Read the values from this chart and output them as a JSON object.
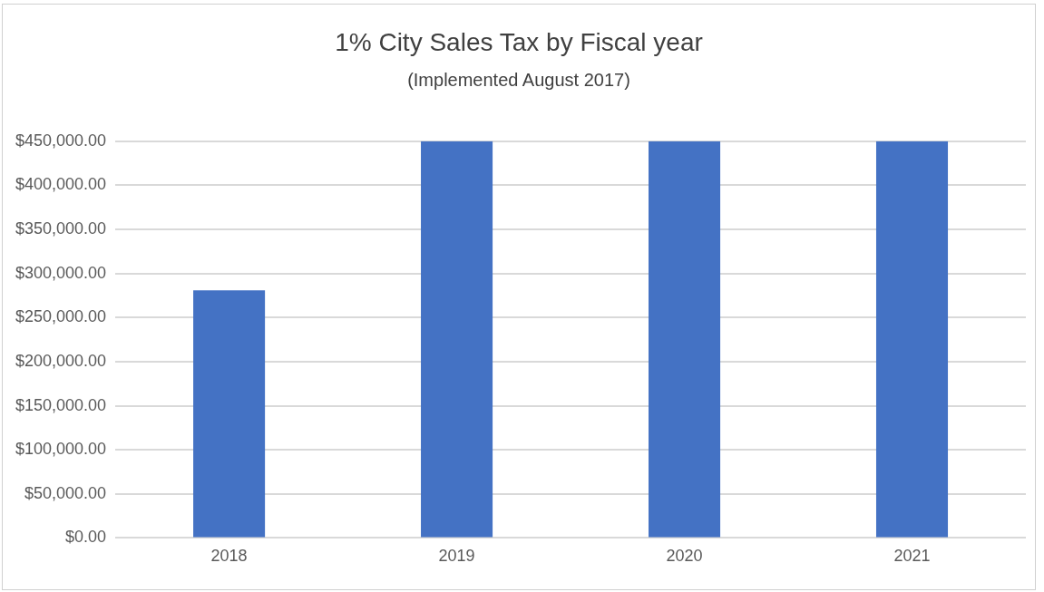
{
  "chart_data": {
    "type": "bar",
    "title": "1% City Sales Tax by Fiscal year",
    "subtitle": "(Implemented August 2017)",
    "categories": [
      "2018",
      "2019",
      "2020",
      "2021"
    ],
    "values": [
      281000,
      450000,
      450000,
      450000
    ],
    "color": "#4472c4",
    "ylim": [
      0,
      450000
    ],
    "yticks": [
      {
        "value": 0,
        "label": "$0.00"
      },
      {
        "value": 50000,
        "label": "$50,000.00"
      },
      {
        "value": 100000,
        "label": "$100,000.00"
      },
      {
        "value": 150000,
        "label": "$150,000.00"
      },
      {
        "value": 200000,
        "label": "$200,000.00"
      },
      {
        "value": 250000,
        "label": "$250,000.00"
      },
      {
        "value": 300000,
        "label": "$300,000.00"
      },
      {
        "value": 350000,
        "label": "$350,000.00"
      },
      {
        "value": 400000,
        "label": "$400,000.00"
      },
      {
        "value": 450000,
        "label": "$450,000.00"
      }
    ],
    "grid": "y",
    "legend": false
  }
}
